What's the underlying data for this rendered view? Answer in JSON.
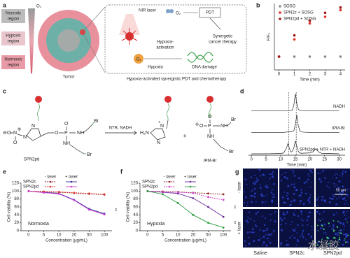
{
  "figure": {
    "a": {
      "label": "a",
      "regions": [
        [
          "Necrotic",
          "region"
        ],
        [
          "Hypoxic",
          "region"
        ],
        [
          "Normoxic",
          "region"
        ]
      ],
      "o2_gradient": "O₂",
      "tumor": "Tumor",
      "nir": "NIR laser",
      "o2_top": "O₂",
      "pdt": "PDT",
      "activation": [
        "Hypoxia-",
        "activation"
      ],
      "synergetic": [
        "Synergetic",
        "cancer therapy"
      ],
      "o2_bottom": "O₂",
      "hypoxia": "Hypoxia",
      "dna": "DNA damage",
      "caption": "Hypoxia-activated synergistic PDT and chemotherapy"
    },
    "c": {
      "label": "c",
      "reagents": "NTR, NADH",
      "plus": "+",
      "names": [
        "SPN2pd",
        "IPM-Br"
      ],
      "atoms": [
        "⊖",
        "O",
        "N",
        "⊕",
        "O",
        "N",
        "N",
        "O",
        "P",
        "O",
        "NH",
        "NH",
        "Br",
        "Br",
        "H₂N",
        "N",
        "+",
        "N",
        "⊖",
        "O",
        "P",
        "O",
        "NH",
        "NH",
        "Br",
        "Br"
      ]
    },
    "g": {
      "label": "g",
      "rows": [
        "- laser",
        "+ laser"
      ],
      "columns": [
        "Saline",
        "SPN2c",
        "SPN2pd"
      ],
      "scale_bar": "50 μm"
    },
    "watermark": "水凝胶"
  },
  "chart_data": [
    {
      "type": "scatter",
      "panel_label": "b",
      "y_label": "F/F₀",
      "x_label": "Time (min)",
      "x": [
        0,
        1,
        2,
        3,
        4
      ],
      "xlim": [
        -0.3,
        4.3
      ],
      "xticks": [
        0,
        1,
        2,
        3,
        4
      ],
      "ylim": [
        0,
        5
      ],
      "series": [
        {
          "name": "SOSG",
          "color": "#888888",
          "values": [
            1,
            1,
            1,
            1,
            1
          ]
        },
        {
          "name": "SPN2c + SOSG",
          "color": "#e0302a",
          "values": [
            1,
            2.3,
            3.5,
            4.0,
            4.5
          ]
        },
        {
          "name": "SPN2pd + SOSG",
          "color": "#a01818",
          "values": [
            1,
            2.6,
            3.7,
            4.3,
            4.7
          ]
        }
      ]
    },
    {
      "type": "chromatogram",
      "panel_label": "d",
      "x_label": "Time (min)",
      "x": [
        0,
        4,
        8,
        10,
        11,
        12,
        12.5,
        13,
        13.5,
        14,
        14.5,
        15,
        15.5,
        16,
        16.5,
        17,
        18,
        20,
        21,
        22,
        23,
        24,
        26,
        28,
        30
      ],
      "xlim": [
        -1,
        32
      ],
      "xticks": [
        0,
        5,
        10,
        15,
        20,
        25,
        30
      ],
      "ylim": [
        0,
        1
      ],
      "reference_lines": [
        12.8,
        15.3
      ],
      "series": [
        {
          "name": "NADH",
          "color": "#222222",
          "values": [
            0,
            0,
            0,
            0.01,
            0.01,
            0.01,
            0.01,
            0.02,
            0.02,
            0.05,
            0.35,
            1,
            0.45,
            0.1,
            0.03,
            0.02,
            0.01,
            0.01,
            0.01,
            0.01,
            0.01,
            0,
            0,
            0,
            0
          ]
        },
        {
          "name": "IPM-Br",
          "color": "#222222",
          "values": [
            0,
            0,
            0,
            0,
            0,
            0.02,
            0.03,
            0.04,
            0.03,
            0.05,
            0.1,
            0.45,
            1,
            0.4,
            0.1,
            0.03,
            0.01,
            0,
            0,
            0,
            0,
            0,
            0,
            0,
            0
          ]
        },
        {
          "name": "SPN2pd + NTR + NADH",
          "color": "#222222",
          "values": [
            0,
            0,
            0.01,
            0.02,
            0.05,
            0.35,
            0.6,
            0.3,
            0.1,
            0.15,
            0.35,
            0.75,
            0.45,
            0.15,
            0.05,
            0.03,
            0.04,
            0.05,
            0.12,
            0.3,
            0.1,
            0.03,
            0.02,
            0.01,
            0
          ]
        }
      ]
    },
    {
      "type": "line",
      "panel_label": "e",
      "y_label": "Cell viability (%)",
      "x_label": "Concentration (μg/mL)",
      "categories": [
        "0",
        "5",
        "10",
        "20",
        "50",
        "100"
      ],
      "ylim": [
        0,
        120
      ],
      "yticks": [
        0,
        20,
        40,
        60,
        80,
        100,
        120
      ],
      "legend_columns": [
        "- laser",
        "+ laser"
      ],
      "condition": "Normoxia",
      "annotations": [
        "**"
      ],
      "series": [
        {
          "name": "SPN2c",
          "color": "#8b1a1a",
          "dash": true,
          "values": [
            100,
            98,
            97,
            95,
            93,
            91
          ]
        },
        {
          "name": "SPN2c",
          "color": "#2a2a9a",
          "dash": false,
          "values": [
            100,
            97,
            94,
            78,
            55,
            43
          ]
        },
        {
          "name": "SPN2pd",
          "color": "#e0302a",
          "dash": true,
          "values": [
            100,
            99,
            98,
            96,
            94,
            92
          ]
        },
        {
          "name": "SPN2pd",
          "color": "#d040d0",
          "dash": false,
          "values": [
            100,
            96,
            93,
            77,
            53,
            41
          ]
        }
      ]
    },
    {
      "type": "line",
      "panel_label": "f",
      "y_label": "Cell viability (%)",
      "x_label": "Concentration (μg/mL)",
      "categories": [
        "0",
        "5",
        "10",
        "20",
        "50",
        "100"
      ],
      "ylim": [
        0,
        120
      ],
      "yticks": [
        0,
        20,
        40,
        60,
        80,
        100,
        120
      ],
      "legend_columns": [
        "- laser",
        "+ laser"
      ],
      "condition": "Hypoxia",
      "annotations": [
        "**",
        "**"
      ],
      "series": [
        {
          "name": "SPN2c",
          "color": "#8b1a1a",
          "dash": true,
          "values": [
            100,
            99,
            98,
            96,
            94,
            92
          ]
        },
        {
          "name": "SPN2c",
          "color": "#6a2a9a",
          "dash": false,
          "values": [
            100,
            97,
            94,
            82,
            60,
            35
          ]
        },
        {
          "name": "SPN2pd",
          "color": "#d040d0",
          "dash": true,
          "values": [
            100,
            98,
            97,
            95,
            85,
            78
          ]
        },
        {
          "name": "SPN2pd",
          "color": "#2a9a3a",
          "dash": false,
          "values": [
            100,
            92,
            70,
            40,
            20,
            8
          ]
        }
      ]
    }
  ]
}
